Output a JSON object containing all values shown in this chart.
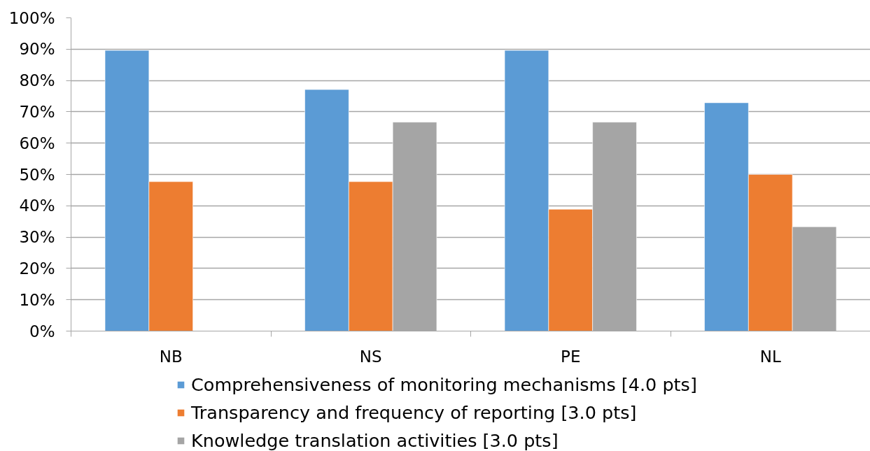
{
  "chart_data": {
    "type": "bar",
    "categories": [
      "NB",
      "NS",
      "PE",
      "NL"
    ],
    "series": [
      {
        "name": "Comprehensiveness of monitoring mechanisms [4.0 pts]",
        "color": "#5b9bd5",
        "values": [
          89.6,
          77.1,
          89.6,
          72.9
        ]
      },
      {
        "name": "Transparency and frequency of reporting [3.0 pts]",
        "color": "#ed7d31",
        "values": [
          47.7,
          47.7,
          38.9,
          50.0
        ]
      },
      {
        "name": "Knowledge translation activities [3.0 pts]",
        "color": "#a5a5a5",
        "values": [
          null,
          66.7,
          66.7,
          33.3
        ]
      }
    ],
    "ylim": [
      0,
      100
    ],
    "yticks": [
      {
        "value": 0,
        "label": "0%"
      },
      {
        "value": 10,
        "label": "10%"
      },
      {
        "value": 20,
        "label": "20%"
      },
      {
        "value": 30,
        "label": "30%"
      },
      {
        "value": 40,
        "label": "40%"
      },
      {
        "value": 50,
        "label": "50%"
      },
      {
        "value": 60,
        "label": "60%"
      },
      {
        "value": 70,
        "label": "70%"
      },
      {
        "value": 80,
        "label": "80%"
      },
      {
        "value": 90,
        "label": "90%"
      },
      {
        "value": 100,
        "label": "100%"
      }
    ],
    "grid": "y",
    "legend": "bottom"
  }
}
